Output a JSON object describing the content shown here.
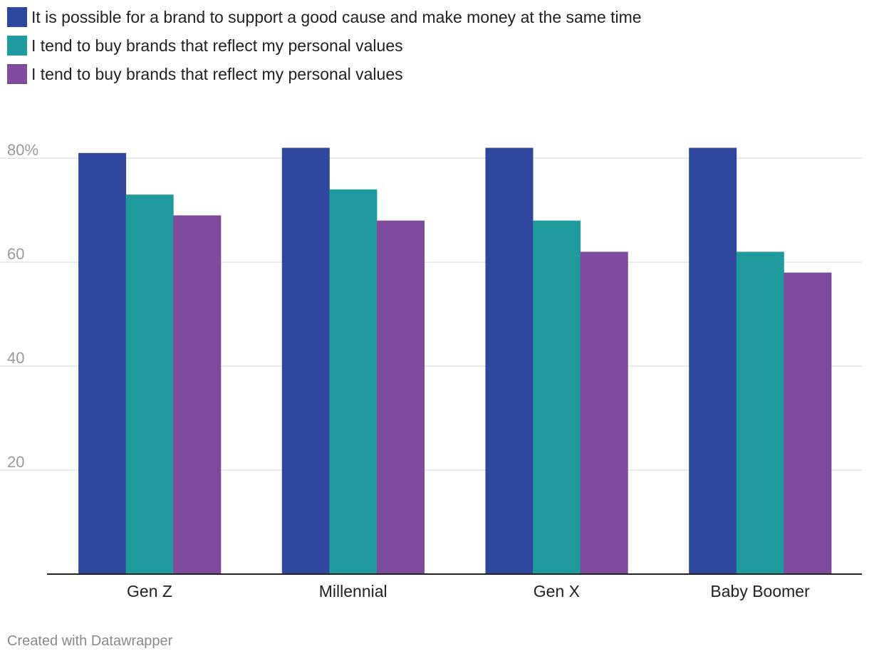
{
  "chart_data": {
    "type": "bar",
    "title": "",
    "xlabel": "",
    "ylabel": "",
    "ylim": [
      0,
      82
    ],
    "categories": [
      "Gen Z",
      "Millennial",
      "Gen X",
      "Baby Boomer"
    ],
    "series": [
      {
        "name": "It is possible for a brand to support a good cause and make money at the same time",
        "color": "#2f479c",
        "values": [
          81,
          82,
          82,
          82
        ]
      },
      {
        "name": "I tend to buy brands that reflect my personal values",
        "color": "#1f9a9d",
        "values": [
          73,
          74,
          68,
          62
        ]
      },
      {
        "name": "I tend to buy brands that reflect my personal values",
        "color": "#7e4a9c",
        "values": [
          69,
          68,
          62,
          58
        ]
      }
    ],
    "yticks": [
      20,
      40,
      60,
      80
    ],
    "ytick_labels": [
      "20",
      "40",
      "60",
      "80%"
    ],
    "grid": true,
    "legend": "top-left"
  },
  "credit": "Created with Datawrapper"
}
